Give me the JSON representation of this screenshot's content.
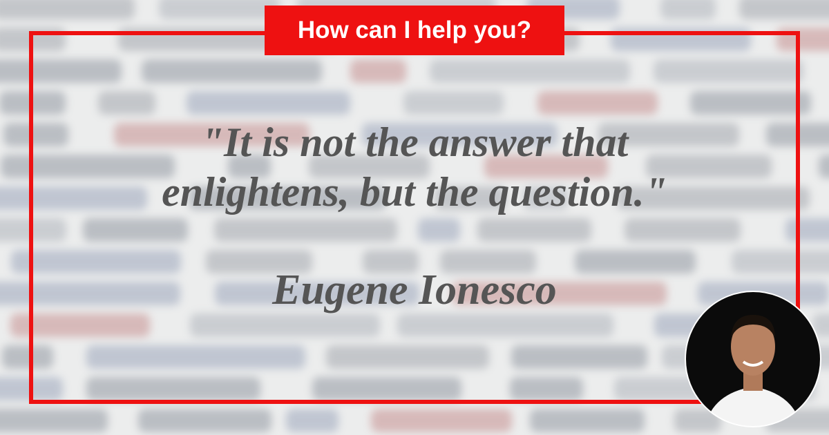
{
  "header": {
    "label": "How can I help you?"
  },
  "quote": {
    "lines": [
      "\"It is not the answer that",
      "enlightens, but the question.\""
    ],
    "author": "Eugene Ionesco"
  }
}
